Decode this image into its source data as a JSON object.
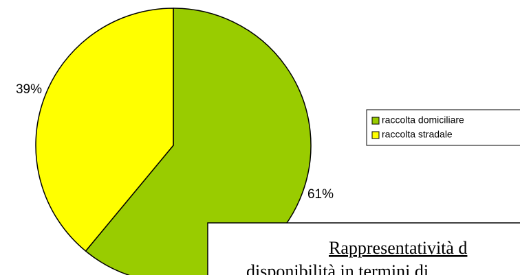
{
  "chart_data": {
    "type": "pie",
    "categories": [
      "raccolta domiciliare",
      "raccolta stradale"
    ],
    "values": [
      61,
      39
    ],
    "value_labels": [
      "61%",
      "39%"
    ],
    "colors": [
      "#99cc00",
      "#ffff00"
    ],
    "annotations": [
      "Rappresentatività d",
      "disponibilità in termini di"
    ]
  }
}
